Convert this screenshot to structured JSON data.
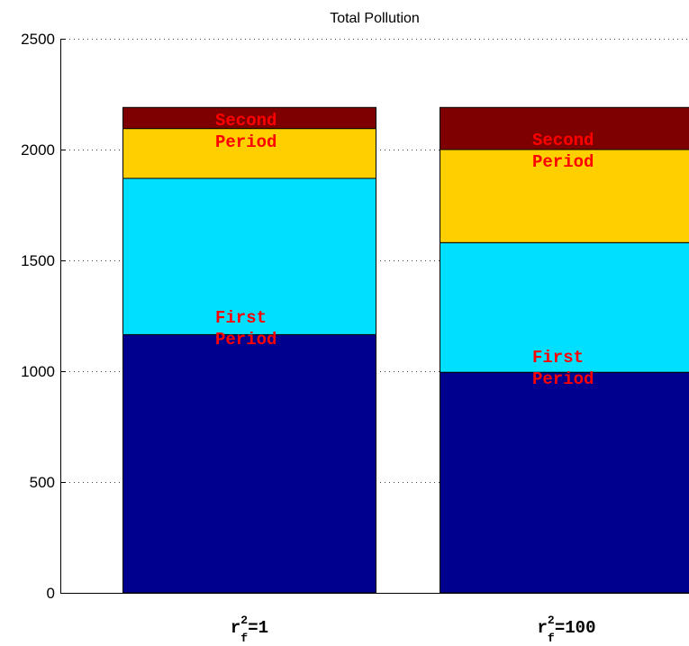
{
  "chart_data": {
    "type": "bar",
    "stacked": true,
    "title": "Total Pollution",
    "xlabel": "",
    "ylabel": "",
    "ylim": [
      0,
      2500
    ],
    "yticks": [
      0,
      500,
      1000,
      1500,
      2000,
      2500
    ],
    "grid": true,
    "categories": [
      {
        "base": "r",
        "sup": "2",
        "sub": "f",
        "suffix": "=1"
      },
      {
        "base": "r",
        "sup": "2",
        "sub": "f",
        "suffix": "=100"
      }
    ],
    "series": [
      {
        "color": "#00008f",
        "values": [
          1165,
          995
        ]
      },
      {
        "color": "#00dfff",
        "values": [
          705,
          585
        ]
      },
      {
        "color": "#ffcf00",
        "values": [
          225,
          420
        ]
      },
      {
        "color": "#7f0000",
        "values": [
          95,
          190
        ]
      }
    ],
    "annotations": [
      {
        "bar": 0,
        "value": 1220,
        "lines": [
          "First",
          "Period"
        ]
      },
      {
        "bar": 0,
        "value": 2110,
        "lines": [
          "Second",
          "Period"
        ]
      },
      {
        "bar": 1,
        "value": 1040,
        "lines": [
          "First",
          "Period"
        ]
      },
      {
        "bar": 1,
        "value": 2020,
        "lines": [
          "Second",
          "Period"
        ]
      }
    ]
  }
}
